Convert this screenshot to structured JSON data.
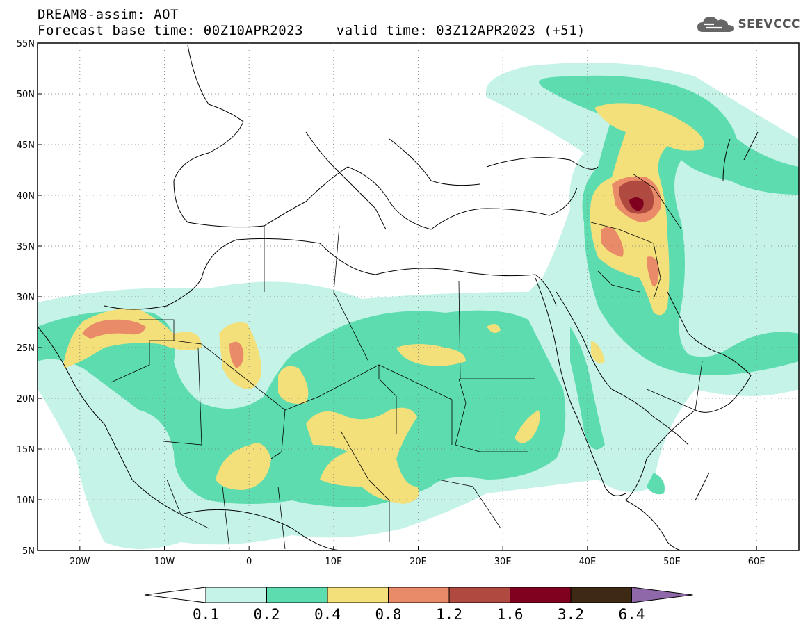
{
  "header": {
    "line1": "DREAM8-assim: AOT",
    "line2": "Forecast base time: 00Z10APR2023    valid time: 03Z12APR2023 (+51)"
  },
  "logo": {
    "text": "SEEVCCC",
    "icon": "cloud-icon"
  },
  "map": {
    "lon_range": [
      -25,
      65
    ],
    "lat_range": [
      5,
      55
    ],
    "lon_ticks": [
      {
        "value": -20,
        "label": "20W"
      },
      {
        "value": -10,
        "label": "10W"
      },
      {
        "value": 0,
        "label": "0"
      },
      {
        "value": 10,
        "label": "10E"
      },
      {
        "value": 20,
        "label": "20E"
      },
      {
        "value": 30,
        "label": "30E"
      },
      {
        "value": 40,
        "label": "40E"
      },
      {
        "value": 50,
        "label": "50E"
      },
      {
        "value": 60,
        "label": "60E"
      }
    ],
    "lat_ticks": [
      {
        "value": 55,
        "label": "55N"
      },
      {
        "value": 50,
        "label": "50N"
      },
      {
        "value": 45,
        "label": "45N"
      },
      {
        "value": 40,
        "label": "40N"
      },
      {
        "value": 35,
        "label": "35N"
      },
      {
        "value": 30,
        "label": "30N"
      },
      {
        "value": 25,
        "label": "25N"
      },
      {
        "value": 20,
        "label": "20N"
      },
      {
        "value": 15,
        "label": "15N"
      },
      {
        "value": 10,
        "label": "10N"
      },
      {
        "value": 5,
        "label": "5N"
      }
    ],
    "grid": "dotted"
  },
  "colorbar": {
    "labels": [
      "0.1",
      "0.2",
      "0.4",
      "0.8",
      "1.2",
      "1.6",
      "3.2",
      "6.4"
    ],
    "colors": [
      "#ffffff",
      "#c6f3e8",
      "#5ddcb0",
      "#f3e07a",
      "#e98a68",
      "#b04a40",
      "#800020",
      "#3d2914",
      "#8e68a8"
    ]
  }
}
